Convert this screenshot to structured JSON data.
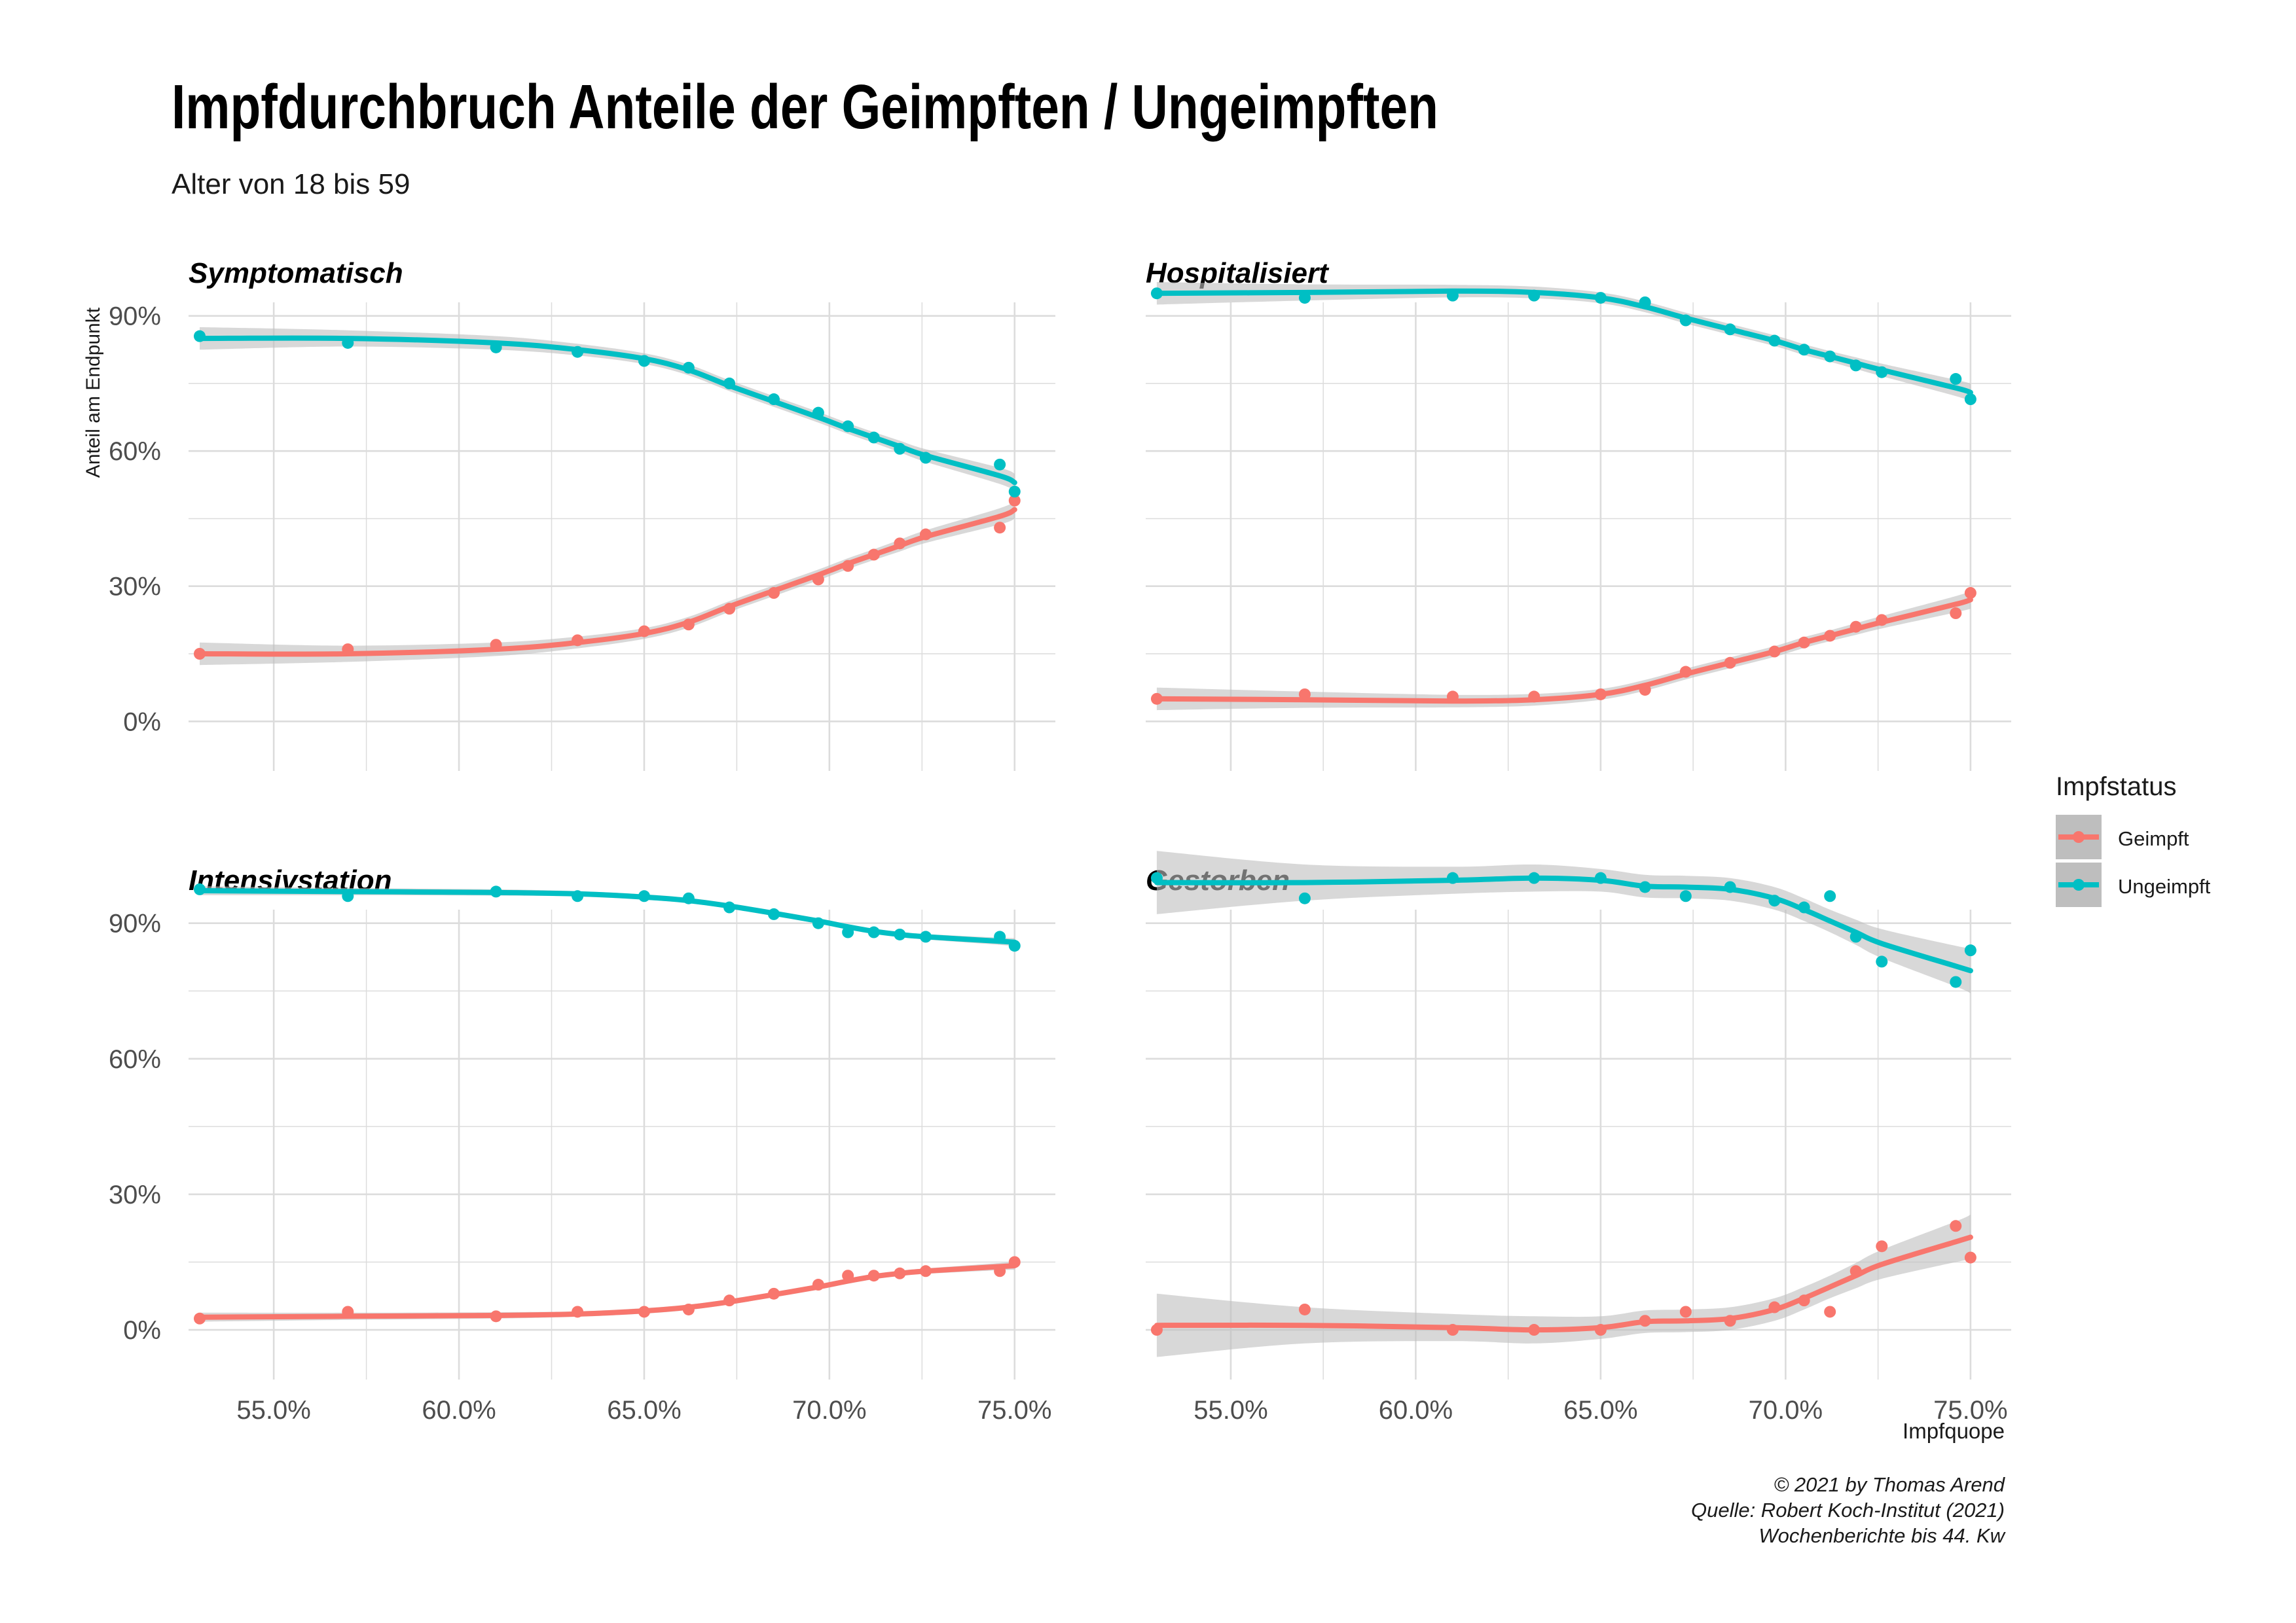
{
  "header": {
    "title": "Impfdurchbruch Anteile der Geimpften / Ungeimpften",
    "subtitle": "Alter von 18 bis 59"
  },
  "caption": {
    "line1": "© 2021 by Thomas Arend",
    "line2": "Quelle: Robert Koch-Institut (2021)",
    "line3": "Wochenberichte bis 44. Kw"
  },
  "colors": {
    "geimpft": "#F8766D",
    "ungeimpft": "#00BFC4",
    "grid": "#DCDCDC",
    "ribbon": "#BEBEBE"
  },
  "chart_data": {
    "type": "scatter",
    "xlabel": "Impfquope",
    "ylabel": "Anteil am Endpunkt",
    "xlim": [
      0.527,
      0.761
    ],
    "ylim": [
      -0.11,
      0.93
    ],
    "x_ticks": [
      0.55,
      0.6,
      0.65,
      0.7,
      0.75
    ],
    "x_tick_labels": [
      "55.0%",
      "60.0%",
      "65.0%",
      "70.0%",
      "75.0%"
    ],
    "y_ticks": [
      0,
      0.3,
      0.6,
      0.9
    ],
    "y_tick_labels": [
      "0%",
      "30%",
      "60%",
      "90%"
    ],
    "legend": {
      "title": "Impfstatus",
      "position": "right",
      "entries": [
        "Geimpft",
        "Ungeimpft"
      ]
    },
    "x": [
      0.53,
      0.57,
      0.61,
      0.632,
      0.65,
      0.662,
      0.673,
      0.685,
      0.697,
      0.705,
      0.712,
      0.719,
      0.726,
      0.746,
      0.75
    ],
    "panels": [
      {
        "title": "Symptomatisch",
        "series": [
          {
            "name": "Geimpft",
            "values": [
              0.15,
              0.16,
              0.17,
              0.18,
              0.2,
              0.215,
              0.25,
              0.285,
              0.315,
              0.345,
              0.37,
              0.395,
              0.415,
              0.43,
              0.49
            ],
            "smooth": [
              0.15,
              0.15,
              0.16,
              0.175,
              0.195,
              0.22,
              0.255,
              0.29,
              0.325,
              0.35,
              0.37,
              0.39,
              0.41,
              0.455,
              0.47
            ],
            "band": [
              0.025,
              0.018,
              0.015,
              0.013,
              0.012,
              0.012,
              0.012,
              0.012,
              0.012,
              0.012,
              0.012,
              0.013,
              0.014,
              0.018,
              0.02
            ]
          },
          {
            "name": "Ungeimpft",
            "values": [
              0.855,
              0.84,
              0.83,
              0.82,
              0.8,
              0.785,
              0.75,
              0.715,
              0.685,
              0.655,
              0.63,
              0.605,
              0.585,
              0.57,
              0.51
            ],
            "smooth": [
              0.85,
              0.85,
              0.84,
              0.825,
              0.805,
              0.78,
              0.745,
              0.71,
              0.675,
              0.65,
              0.63,
              0.61,
              0.59,
              0.545,
              0.53
            ],
            "band": [
              0.025,
              0.018,
              0.015,
              0.013,
              0.012,
              0.012,
              0.012,
              0.012,
              0.012,
              0.012,
              0.012,
              0.013,
              0.014,
              0.018,
              0.02
            ]
          }
        ]
      },
      {
        "title": "Hospitalisiert",
        "series": [
          {
            "name": "Geimpft",
            "values": [
              0.05,
              0.06,
              0.055,
              0.055,
              0.06,
              0.07,
              0.11,
              0.13,
              0.155,
              0.175,
              0.19,
              0.21,
              0.225,
              0.24,
              0.285
            ],
            "smooth": [
              0.05,
              0.048,
              0.045,
              0.048,
              0.06,
              0.08,
              0.105,
              0.13,
              0.155,
              0.175,
              0.19,
              0.205,
              0.22,
              0.26,
              0.27
            ],
            "band": [
              0.025,
              0.018,
              0.014,
              0.013,
              0.012,
              0.012,
              0.012,
              0.012,
              0.012,
              0.012,
              0.012,
              0.013,
              0.014,
              0.018,
              0.02
            ]
          },
          {
            "name": "Ungeimpft",
            "values": [
              0.95,
              0.94,
              0.945,
              0.945,
              0.94,
              0.93,
              0.89,
              0.87,
              0.845,
              0.825,
              0.81,
              0.79,
              0.775,
              0.76,
              0.715
            ],
            "smooth": [
              0.95,
              0.952,
              0.955,
              0.952,
              0.94,
              0.92,
              0.895,
              0.87,
              0.845,
              0.825,
              0.81,
              0.795,
              0.78,
              0.74,
              0.73
            ],
            "band": [
              0.025,
              0.018,
              0.014,
              0.013,
              0.012,
              0.012,
              0.012,
              0.012,
              0.012,
              0.012,
              0.012,
              0.013,
              0.014,
              0.018,
              0.02
            ]
          }
        ]
      },
      {
        "title": "Intensivstation",
        "series": [
          {
            "name": "Geimpft",
            "values": [
              0.025,
              0.04,
              0.03,
              0.04,
              0.04,
              0.045,
              0.065,
              0.08,
              0.1,
              0.12,
              0.12,
              0.125,
              0.13,
              0.13,
              0.15
            ],
            "smooth": [
              0.028,
              0.03,
              0.032,
              0.035,
              0.042,
              0.05,
              0.062,
              0.078,
              0.095,
              0.108,
              0.118,
              0.125,
              0.13,
              0.14,
              0.142
            ],
            "band": [
              0.01,
              0.008,
              0.007,
              0.006,
              0.006,
              0.006,
              0.006,
              0.006,
              0.006,
              0.006,
              0.006,
              0.006,
              0.006,
              0.008,
              0.009
            ]
          },
          {
            "name": "Ungeimpft",
            "values": [
              0.975,
              0.96,
              0.97,
              0.96,
              0.96,
              0.955,
              0.935,
              0.92,
              0.9,
              0.88,
              0.88,
              0.875,
              0.87,
              0.87,
              0.85
            ],
            "smooth": [
              0.972,
              0.97,
              0.968,
              0.965,
              0.958,
              0.95,
              0.938,
              0.922,
              0.905,
              0.892,
              0.882,
              0.875,
              0.87,
              0.86,
              0.858
            ],
            "band": [
              0.01,
              0.008,
              0.007,
              0.006,
              0.006,
              0.006,
              0.006,
              0.006,
              0.006,
              0.006,
              0.006,
              0.006,
              0.006,
              0.008,
              0.009
            ]
          }
        ]
      },
      {
        "title": "Gestorben",
        "series": [
          {
            "name": "Geimpft",
            "values": [
              0.0,
              0.045,
              0.0,
              0.0,
              0.0,
              0.02,
              0.04,
              0.02,
              0.05,
              0.065,
              0.04,
              0.13,
              0.185,
              0.23,
              0.16
            ],
            "smooth": [
              0.01,
              0.01,
              0.005,
              0.0,
              0.005,
              0.018,
              0.02,
              0.025,
              0.045,
              0.07,
              0.095,
              0.12,
              0.145,
              0.195,
              0.205
            ],
            "band": [
              0.07,
              0.04,
              0.03,
              0.03,
              0.025,
              0.025,
              0.025,
              0.025,
              0.025,
              0.025,
              0.025,
              0.028,
              0.032,
              0.045,
              0.05
            ]
          },
          {
            "name": "Ungeimpft",
            "values": [
              1.0,
              0.955,
              1.0,
              1.0,
              1.0,
              0.98,
              0.96,
              0.98,
              0.95,
              0.935,
              0.96,
              0.87,
              0.815,
              0.77,
              0.84
            ],
            "smooth": [
              0.99,
              0.99,
              0.995,
              1.0,
              0.995,
              0.982,
              0.98,
              0.975,
              0.955,
              0.93,
              0.905,
              0.88,
              0.855,
              0.805,
              0.795
            ],
            "band": [
              0.07,
              0.04,
              0.03,
              0.03,
              0.025,
              0.025,
              0.025,
              0.025,
              0.025,
              0.025,
              0.025,
              0.028,
              0.032,
              0.045,
              0.05
            ]
          }
        ]
      }
    ]
  }
}
